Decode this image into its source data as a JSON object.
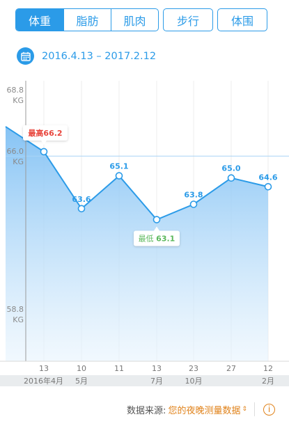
{
  "tabs_group1": [
    {
      "label": "体重",
      "active": true
    },
    {
      "label": "脂肪",
      "active": false
    },
    {
      "label": "肌肉",
      "active": false
    }
  ],
  "tab_steps": "步行",
  "tab_girth": "体围",
  "date_range": "2016.4.13 – 2017.2.12",
  "chart_data": {
    "type": "area",
    "unit": "KG",
    "y_ticks": [
      "68.8",
      "66.0",
      "58.8"
    ],
    "ylim": [
      58.8,
      68.8
    ],
    "points": [
      {
        "day": "13",
        "value": 66.2
      },
      {
        "day": "10",
        "value": 63.6
      },
      {
        "day": "11",
        "value": 65.1
      },
      {
        "day": "13",
        "value": 63.1
      },
      {
        "day": "23",
        "value": 63.8
      },
      {
        "day": "27",
        "value": 65.0
      },
      {
        "day": "12",
        "value": 64.6
      }
    ],
    "month_labels": [
      "2016年4月",
      "5月",
      "",
      "7月",
      "10月",
      "",
      "2月"
    ],
    "max_label": "最高",
    "max_value": "66.2",
    "min_label": "最低",
    "min_value": "63.1",
    "colors": {
      "line": "#2b9be8",
      "max": "#e8453c",
      "min": "#5cb85c"
    }
  },
  "footer": {
    "source_label": "数据来源:",
    "source_value": "您的夜晚测量数据"
  }
}
